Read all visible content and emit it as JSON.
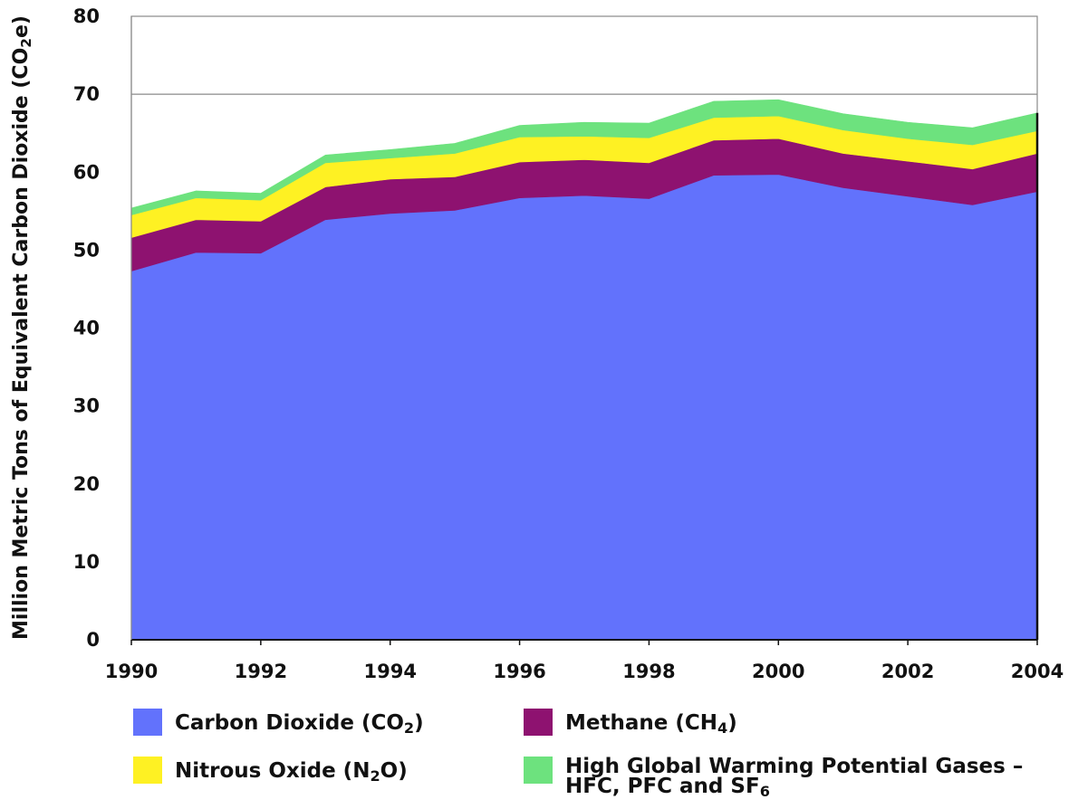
{
  "chart_data": {
    "type": "area",
    "stacked": true,
    "x": [
      1990,
      1991,
      1992,
      1993,
      1994,
      1995,
      1996,
      1997,
      1998,
      1999,
      2000,
      2001,
      2002,
      2003,
      2004
    ],
    "x_ticks": [
      "1990",
      "1992",
      "1994",
      "1996",
      "1998",
      "2000",
      "2002",
      "2004"
    ],
    "y_ticks": [
      "0",
      "10",
      "20",
      "30",
      "40",
      "50",
      "60",
      "70",
      "80"
    ],
    "xlim": [
      1990,
      2004
    ],
    "ylim": [
      0,
      80
    ],
    "ylabel": "Million Metric Tons of Equivalent Carbon Dioxide (CO2e)",
    "ylabel_parts": [
      {
        "text": "Million Metric Tons of Equivalent Carbon Dioxide (CO",
        "sub": false
      },
      {
        "text": "2",
        "sub": true
      },
      {
        "text": "e)",
        "sub": false
      }
    ],
    "grid": "horizontal line at 70",
    "series": [
      {
        "name": "Carbon Dioxide (CO2)",
        "color": "#6272fc",
        "values": [
          47.3,
          49.7,
          49.6,
          53.9,
          54.7,
          55.1,
          56.7,
          57.0,
          56.6,
          59.6,
          59.7,
          58.0,
          56.9,
          55.8,
          57.5
        ],
        "label_parts": [
          {
            "text": "Carbon Dioxide (CO",
            "sub": false
          },
          {
            "text": "2",
            "sub": true
          },
          {
            "text": ")",
            "sub": false
          }
        ]
      },
      {
        "name": "Methane (CH4)",
        "color": "#8e1270",
        "values": [
          4.3,
          4.2,
          4.1,
          4.2,
          4.4,
          4.3,
          4.6,
          4.6,
          4.6,
          4.5,
          4.6,
          4.4,
          4.5,
          4.6,
          4.9
        ],
        "label_parts": [
          {
            "text": "Methane (CH",
            "sub": false
          },
          {
            "text": "4",
            "sub": true
          },
          {
            "text": ")",
            "sub": false
          }
        ]
      },
      {
        "name": "Nitrous Oxide (N2O)",
        "color": "#fef123",
        "values": [
          2.9,
          2.8,
          2.7,
          3.1,
          2.7,
          3.0,
          3.2,
          3.0,
          3.2,
          2.9,
          2.9,
          3.0,
          2.9,
          3.1,
          2.9
        ],
        "label_parts": [
          {
            "text": "Nitrous Oxide (N",
            "sub": false
          },
          {
            "text": "2",
            "sub": true
          },
          {
            "text": "O)",
            "sub": false
          }
        ]
      },
      {
        "name": "High Global Warming Potential Gases – HFC, PFC and SF6",
        "color": "#6de27e",
        "values": [
          0.9,
          0.9,
          0.9,
          1.0,
          1.1,
          1.3,
          1.5,
          1.8,
          1.9,
          2.1,
          2.1,
          2.1,
          2.1,
          2.2,
          2.3
        ],
        "label_parts": [
          {
            "text": "High Global Warming Potential Gases –",
            "sub": false,
            "break": false
          },
          {
            "text": "HFC, PFC and SF",
            "sub": false,
            "break": true
          },
          {
            "text": "6",
            "sub": true,
            "break": false
          }
        ]
      }
    ],
    "legend": "bottom"
  }
}
